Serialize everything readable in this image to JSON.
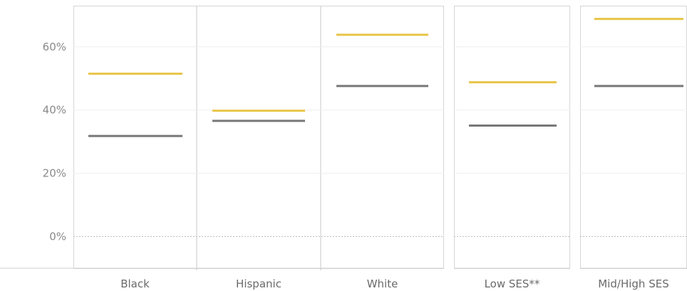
{
  "chart_data": {
    "type": "dot-range",
    "y_axis": {
      "ticks": [
        0,
        20,
        40,
        60
      ],
      "tick_labels": [
        "0%",
        "20%",
        "40%",
        "60%"
      ],
      "ylim": [
        -10,
        73
      ]
    },
    "groups": [
      {
        "categories": [
          "Black",
          "Hispanic",
          "White"
        ]
      },
      {
        "categories": [
          "Low SES**"
        ]
      },
      {
        "categories": [
          "Mid/High SES"
        ]
      }
    ],
    "categories": [
      "Black",
      "Hispanic",
      "White",
      "Low SES**",
      "Mid/High SES"
    ],
    "series": [
      {
        "color": "#e8c547",
        "values": [
          51.5,
          39.8,
          63.8,
          48.8,
          68.8
        ]
      },
      {
        "color": "#777777",
        "values": [
          31.8,
          36.6,
          47.6,
          35.1,
          47.6
        ]
      }
    ],
    "grid": true,
    "legend": "none"
  }
}
